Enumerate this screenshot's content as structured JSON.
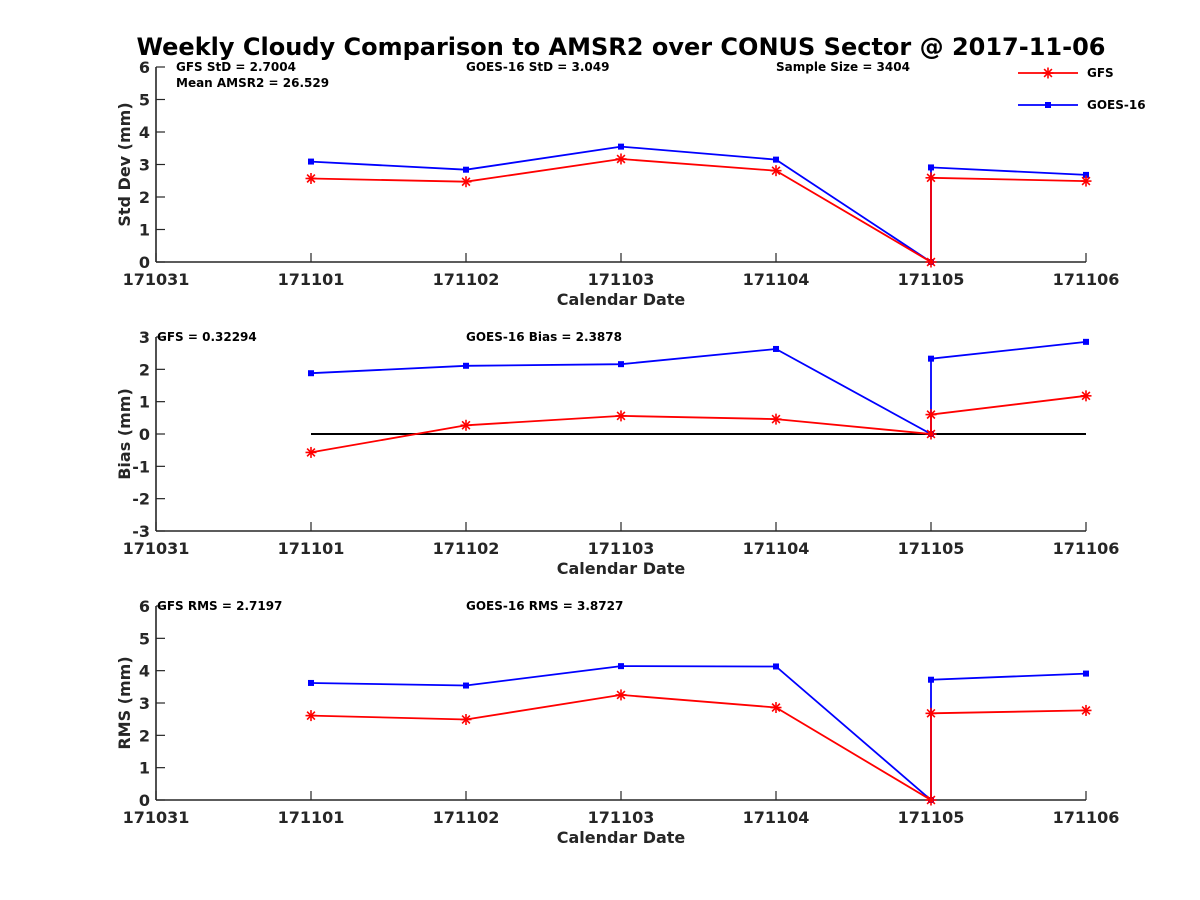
{
  "chart_data": {
    "type": "line",
    "title": "Weekly Cloudy Comparison to AMSR2 over CONUS Sector @ 2017-11-06",
    "legend": {
      "placement": "top-right",
      "entries": [
        {
          "name": "GFS",
          "color": "#ff0000",
          "marker": "asterisk"
        },
        {
          "name": "GOES-16",
          "color": "#0000ff",
          "marker": "square"
        }
      ]
    },
    "panels": [
      {
        "id": "stddev",
        "ylabel": "Std Dev (mm)",
        "xlabel": "Calendar Date",
        "xlim": [
          171031,
          171106
        ],
        "ylim": [
          0,
          6
        ],
        "yticks": [
          "0",
          "1",
          "2",
          "3",
          "4",
          "5",
          "6"
        ],
        "xticks": [
          "171031",
          "171101",
          "171102",
          "171103",
          "171104",
          "171105",
          "171106"
        ],
        "annotations": [
          "GFS StD = 2.7004",
          "Mean AMSR2 = 26.529",
          "GOES-16 StD = 3.049",
          "Sample Size = 3404"
        ],
        "zero_line": false,
        "series": [
          {
            "name": "GFS",
            "x": [
              1,
              2,
              3,
              4,
              5,
              5,
              6
            ],
            "values": [
              2.57,
              2.47,
              3.17,
              2.81,
              0.0,
              2.59,
              2.49
            ]
          },
          {
            "name": "GOES-16",
            "x": [
              1,
              2,
              3,
              4,
              5,
              5,
              6
            ],
            "values": [
              3.09,
              2.84,
              3.55,
              3.15,
              0.0,
              2.91,
              2.68
            ]
          }
        ]
      },
      {
        "id": "bias",
        "ylabel": "Bias (mm)",
        "xlabel": "Calendar Date",
        "xlim": [
          171031,
          171106
        ],
        "ylim": [
          -3,
          3
        ],
        "yticks": [
          "-3",
          "-2",
          "-1",
          "0",
          "1",
          "2",
          "3"
        ],
        "xticks": [
          "171031",
          "171101",
          "171102",
          "171103",
          "171104",
          "171105",
          "171106"
        ],
        "annotations": [
          "GFS = 0.32294",
          "GOES-16 Bias  = 2.3878"
        ],
        "zero_line": true,
        "series": [
          {
            "name": "GFS",
            "x": [
              1,
              2,
              3,
              4,
              5,
              5,
              6
            ],
            "values": [
              -0.57,
              0.27,
              0.56,
              0.46,
              0.0,
              0.6,
              1.18
            ]
          },
          {
            "name": "GOES-16",
            "x": [
              1,
              2,
              3,
              4,
              5,
              5,
              6
            ],
            "values": [
              1.88,
              2.11,
              2.16,
              2.63,
              0.0,
              2.33,
              2.85
            ]
          }
        ]
      },
      {
        "id": "rms",
        "ylabel": "RMS (mm)",
        "xlabel": "Calendar Date",
        "xlim": [
          171031,
          171106
        ],
        "ylim": [
          0,
          6
        ],
        "yticks": [
          "0",
          "1",
          "2",
          "3",
          "4",
          "5",
          "6"
        ],
        "xticks": [
          "171031",
          "171101",
          "171102",
          "171103",
          "171104",
          "171105",
          "171106"
        ],
        "annotations": [
          "GFS RMS = 2.7197",
          "GOES-16 RMS = 3.8727"
        ],
        "zero_line": false,
        "series": [
          {
            "name": "GFS",
            "x": [
              1,
              2,
              3,
              4,
              5,
              5,
              6
            ],
            "values": [
              2.61,
              2.49,
              3.25,
              2.86,
              0.0,
              2.68,
              2.77
            ]
          },
          {
            "name": "GOES-16",
            "x": [
              1,
              2,
              3,
              4,
              5,
              5,
              6
            ],
            "values": [
              3.62,
              3.54,
              4.14,
              4.13,
              0.0,
              3.72,
              3.91
            ]
          }
        ]
      }
    ]
  }
}
